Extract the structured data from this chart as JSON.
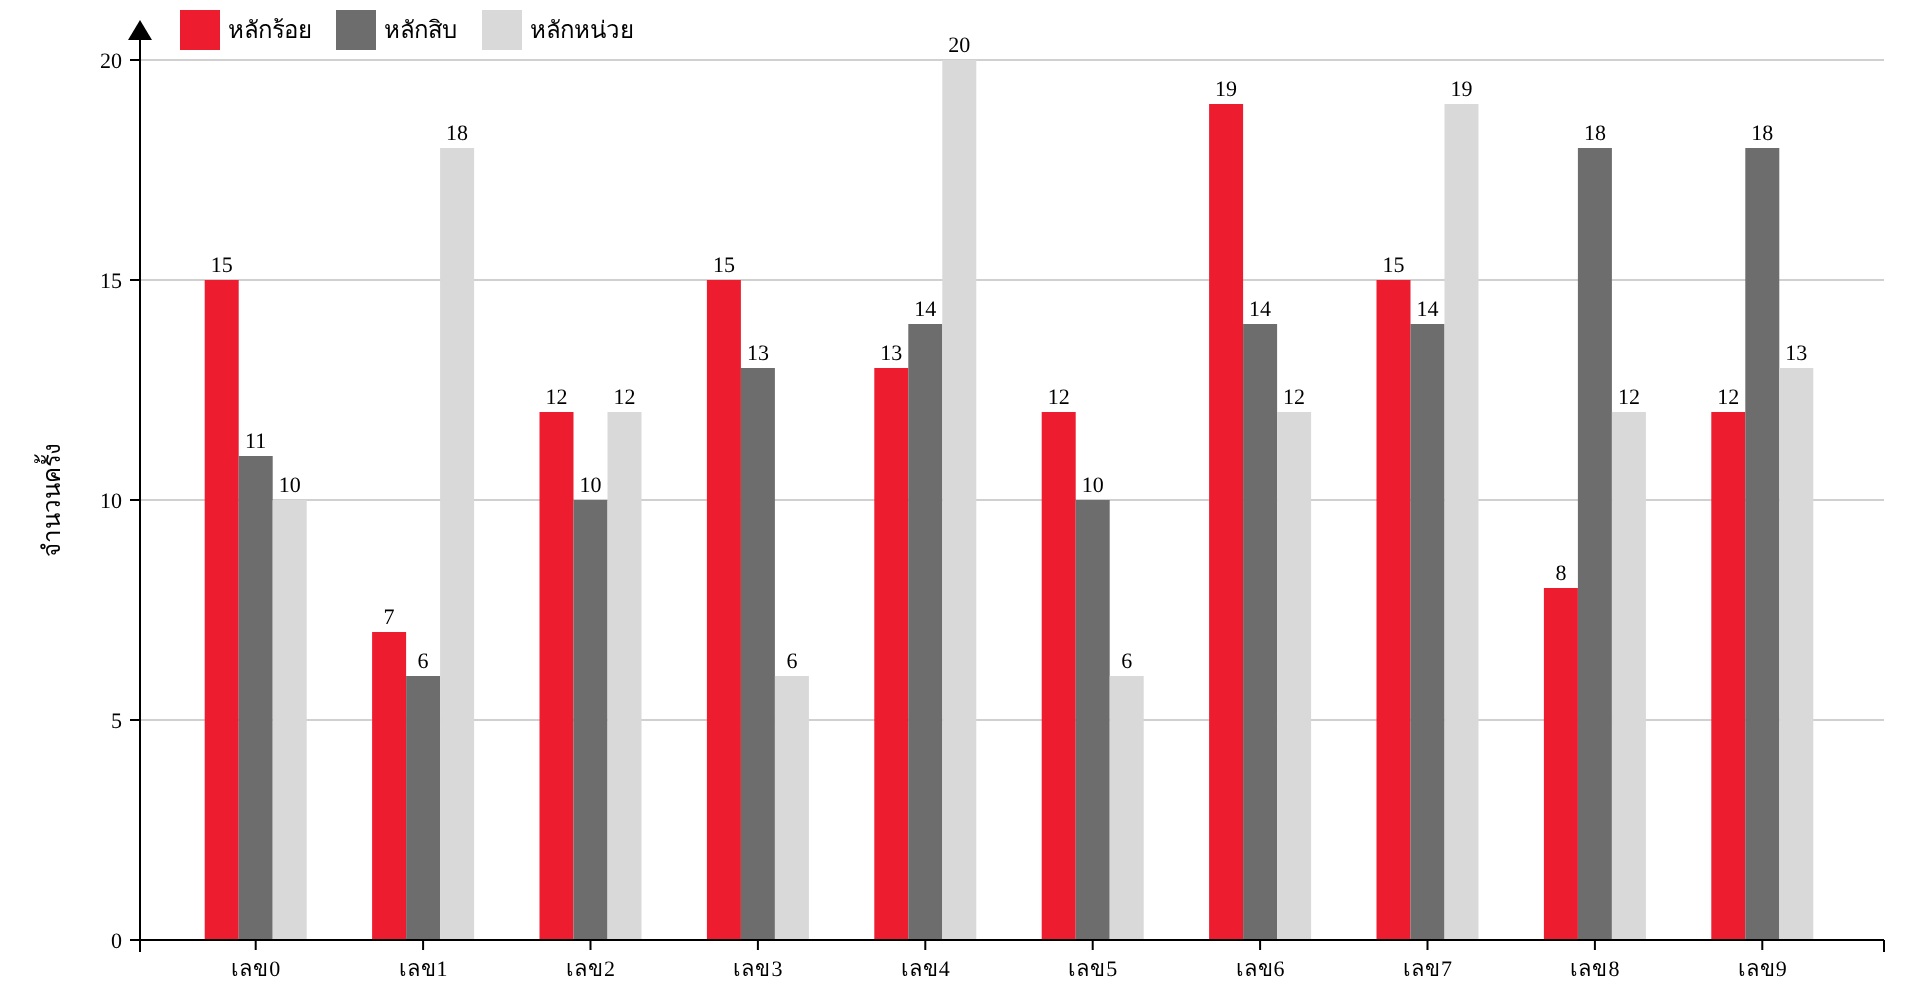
{
  "chart_data": {
    "type": "bar",
    "ylabel": "จำนวนครั้ง",
    "categories": [
      "เลข0",
      "เลข1",
      "เลข2",
      "เลข3",
      "เลข4",
      "เลข5",
      "เลข6",
      "เลข7",
      "เลข8",
      "เลข9"
    ],
    "series": [
      {
        "name": "หลักร้อย",
        "color": "#ed1c2e",
        "values": [
          15,
          7,
          12,
          15,
          13,
          12,
          19,
          15,
          8,
          12
        ]
      },
      {
        "name": "หลักสิบ",
        "color": "#6d6d6d",
        "values": [
          11,
          6,
          10,
          13,
          14,
          10,
          14,
          14,
          18,
          18
        ]
      },
      {
        "name": "หลักหน่วย",
        "color": "#d9d9d9",
        "values": [
          10,
          18,
          12,
          6,
          20,
          6,
          12,
          19,
          12,
          13
        ]
      }
    ],
    "ylim": [
      0,
      20
    ],
    "yticks": [
      0,
      5,
      10,
      15,
      20
    ],
    "grid": "y",
    "legend": "top left",
    "data_labels": true
  }
}
